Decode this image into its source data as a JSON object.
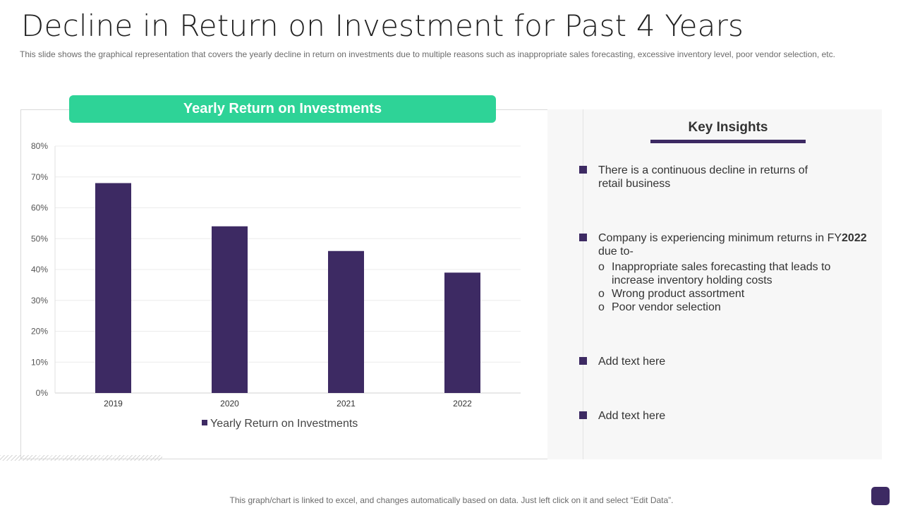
{
  "slide": {
    "title": "Decline in Return on Investment for Past 4 Years",
    "subtitle": "This slide shows the graphical representation that covers the yearly decline in return on investments due to multiple reasons such as inappropriate  sales forecasting, excessive inventory level, poor vendor selection, etc.",
    "footer": "This graph/chart is linked to excel, and changes automatically based on data. Just left click on it and select “Edit Data”."
  },
  "chart_header": "Yearly Return on Investments",
  "chart_data": {
    "type": "bar",
    "categories": [
      "2019",
      "2020",
      "2021",
      "2022"
    ],
    "series": [
      {
        "name": "Yearly Return on Investments",
        "values": [
          68,
          54,
          46,
          39
        ],
        "color": "#3d2a63"
      }
    ],
    "ylim": [
      0,
      80
    ],
    "yticks": [
      "0%",
      "10%",
      "20%",
      "30%",
      "40%",
      "50%",
      "60%",
      "70%",
      "80%"
    ],
    "unit": "%",
    "grid": true,
    "legend": "bottom"
  },
  "insights": {
    "title": "Key Insights",
    "item1": "There is a continuous  decline in returns of retail business",
    "item2_prefix": "Company is experiencing minimum returns  in FY",
    "item2_bold": "2022",
    "item2_suffix": " due to-",
    "sub_items": [
      "Inappropriate sales forecasting that leads to increase inventory  holding costs",
      "Wrong product assortment",
      "Poor vendor selection"
    ],
    "sub_marker": "o",
    "item3": "Add text here",
    "item4": "Add text here"
  },
  "colors": {
    "accent": "#2ed397",
    "bar": "#3d2a63"
  }
}
